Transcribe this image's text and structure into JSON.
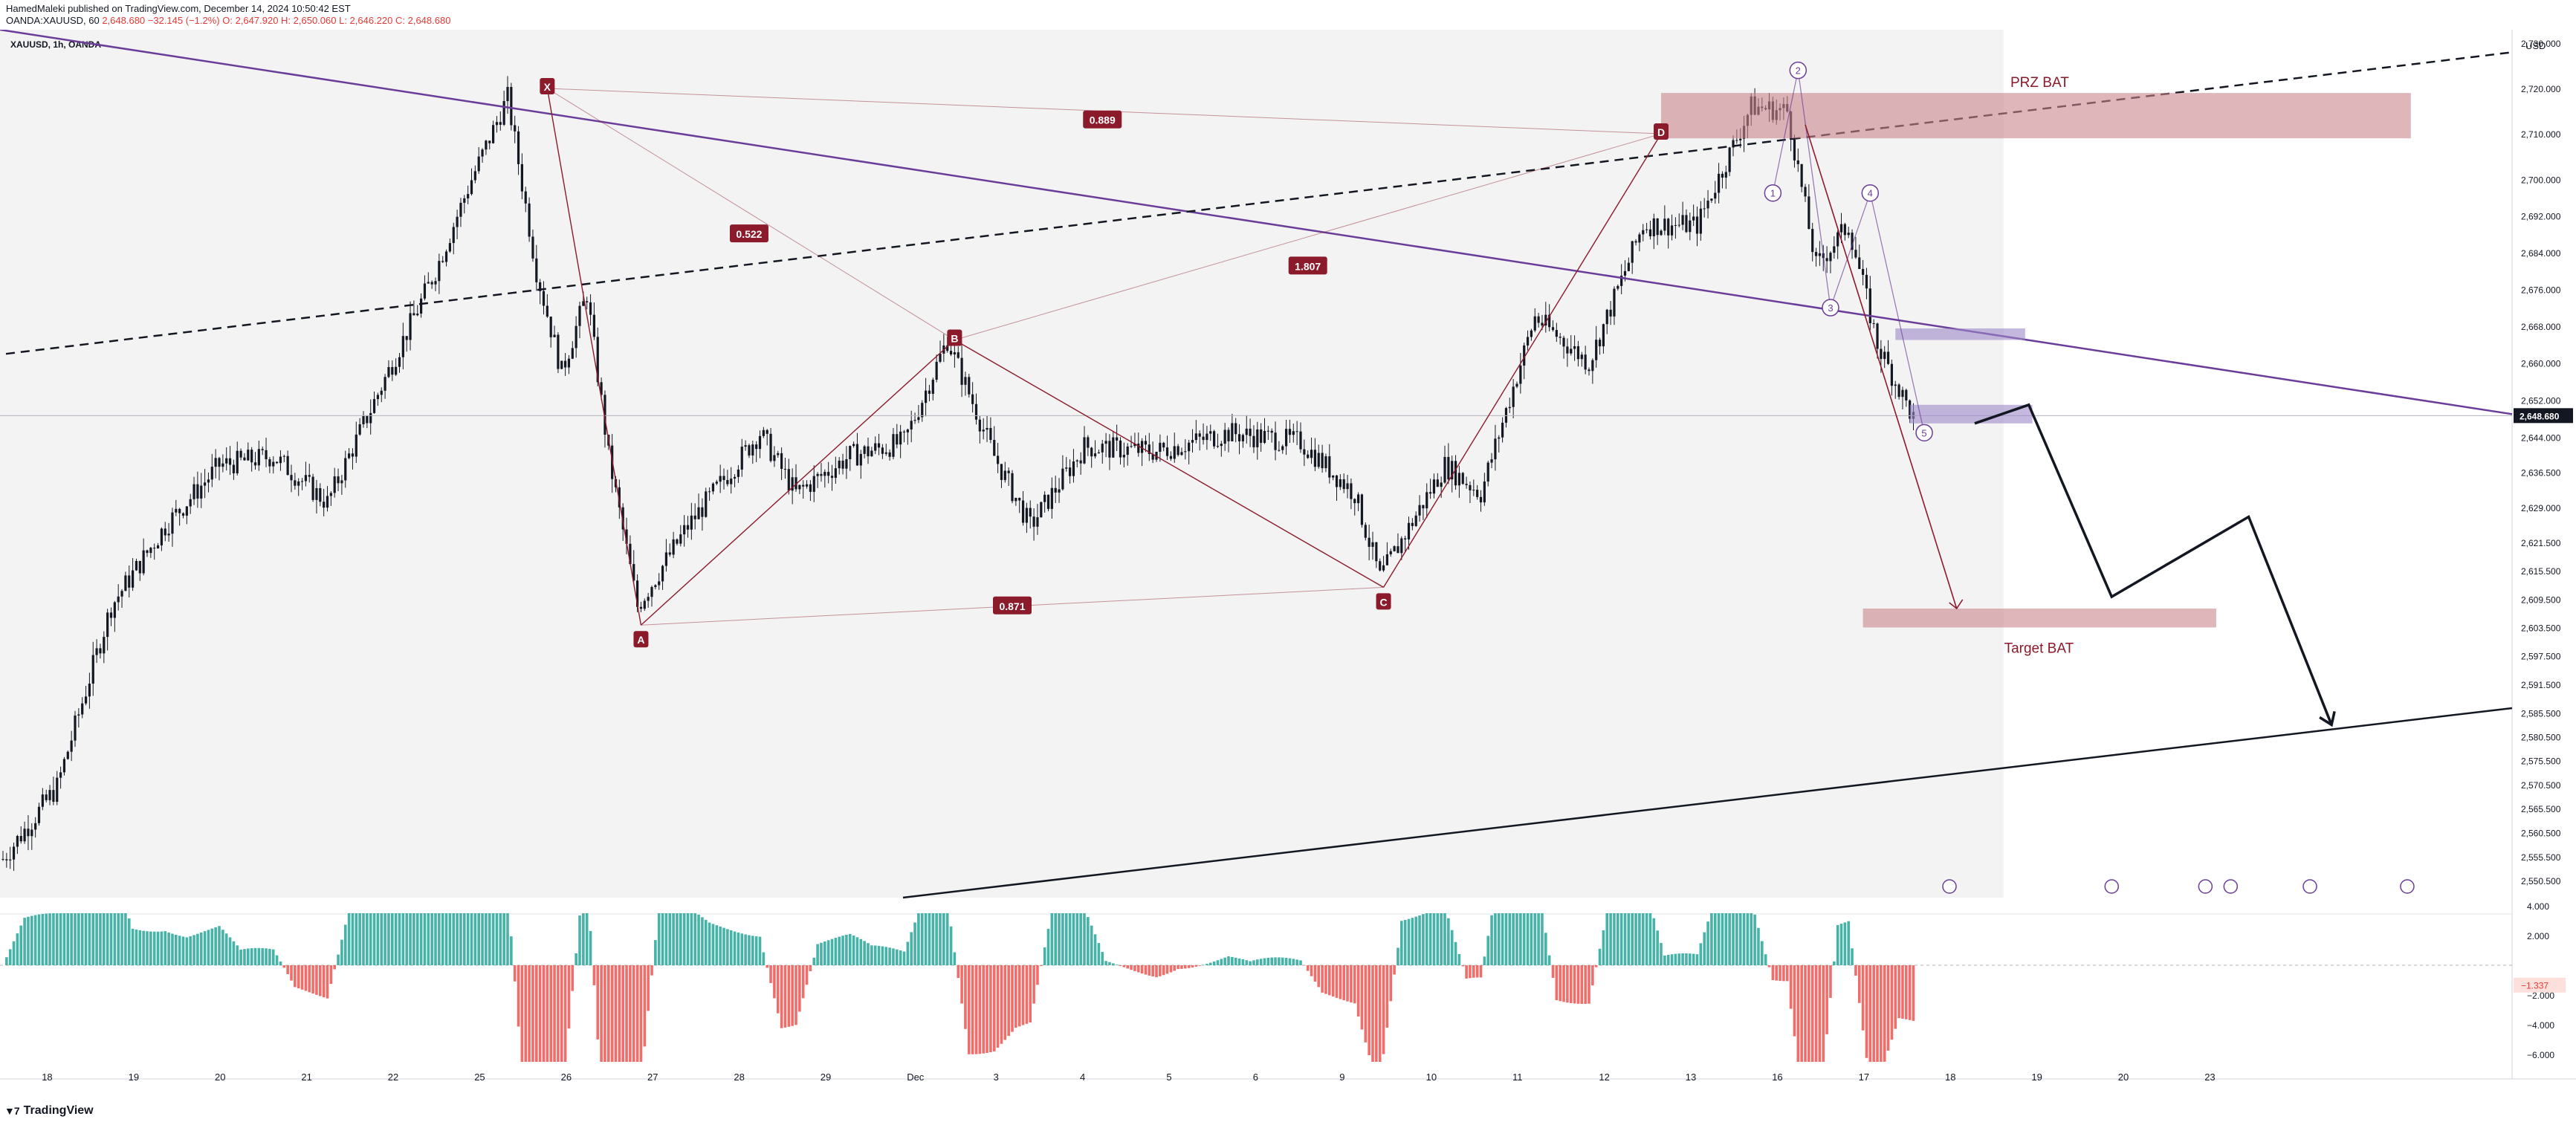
{
  "header": {
    "publisher": "HamedMaleki published on TradingView.com, December 14, 2024 10:50:42 EST",
    "symbol": "OANDA:XAUUSD, 60",
    "change": "2,648.680 −32.145 (−1.2%)",
    "ohlc": "O: 2,647.920 H: 2,650.060 L: 2,646.220 C: 2,648.680"
  },
  "chart_label": "XAUUSD, 1h, OANDA",
  "axis_currency": "USD",
  "last_price_label": "2,648.680",
  "footer_brand": "TradingView",
  "colors": {
    "up": "#26a69a",
    "down": "#ef5350",
    "pattern": "#8b1a2b",
    "purple_line": "#6a3d9a",
    "zone_red": "#c9868c",
    "zone_purple": "#9c88c9",
    "plot_bg": "#f3f3f3"
  },
  "chart_data": {
    "type": "candlestick",
    "y_ticks": [
      "2,730.000",
      "2,720.000",
      "2,710.000",
      "2,700.000",
      "2,692.000",
      "2,684.000",
      "2,676.000",
      "2,668.000",
      "2,660.000",
      "2,652.000",
      "2,644.000",
      "2,636.500",
      "2,629.000",
      "2,621.500",
      "2,615.500",
      "2,609.500",
      "2,603.500",
      "2,597.500",
      "2,591.500",
      "2,585.500",
      "2,580.500",
      "2,575.500",
      "2,570.500",
      "2,565.500",
      "2,560.500",
      "2,555.500",
      "2,550.500"
    ],
    "y_tick_values": [
      2730,
      2720,
      2710,
      2700,
      2692,
      2684,
      2676,
      2668,
      2660,
      2652,
      2644,
      2636.5,
      2629,
      2621.5,
      2615.5,
      2609.5,
      2603.5,
      2597.5,
      2591.5,
      2585.5,
      2580.5,
      2575.5,
      2570.5,
      2565.5,
      2560.5,
      2555.5,
      2550.5
    ],
    "x_ticks": [
      "18",
      "19",
      "20",
      "21",
      "22",
      "25",
      "26",
      "27",
      "28",
      "29",
      "Dec",
      "3",
      "4",
      "5",
      "6",
      "9",
      "10",
      "11",
      "12",
      "13",
      "16",
      "17",
      "18",
      "19",
      "20",
      "23"
    ],
    "price_path": [
      {
        "i": 0,
        "v": 2555
      },
      {
        "i": 15,
        "v": 2570
      },
      {
        "i": 30,
        "v": 2608
      },
      {
        "i": 45,
        "v": 2625
      },
      {
        "i": 60,
        "v": 2638
      },
      {
        "i": 75,
        "v": 2640
      },
      {
        "i": 90,
        "v": 2630
      },
      {
        "i": 105,
        "v": 2655
      },
      {
        "i": 120,
        "v": 2680
      },
      {
        "i": 130,
        "v": 2700
      },
      {
        "i": 140,
        "v": 2718
      },
      {
        "i": 148,
        "v": 2680
      },
      {
        "i": 155,
        "v": 2658
      },
      {
        "i": 162,
        "v": 2675
      },
      {
        "i": 168,
        "v": 2640
      },
      {
        "i": 176,
        "v": 2608
      },
      {
        "i": 190,
        "v": 2625
      },
      {
        "i": 210,
        "v": 2645
      },
      {
        "i": 220,
        "v": 2632
      },
      {
        "i": 235,
        "v": 2640
      },
      {
        "i": 250,
        "v": 2643
      },
      {
        "i": 262,
        "v": 2665
      },
      {
        "i": 275,
        "v": 2640
      },
      {
        "i": 285,
        "v": 2625
      },
      {
        "i": 300,
        "v": 2642
      },
      {
        "i": 320,
        "v": 2641
      },
      {
        "i": 340,
        "v": 2645
      },
      {
        "i": 360,
        "v": 2643
      },
      {
        "i": 375,
        "v": 2632
      },
      {
        "i": 382,
        "v": 2614
      },
      {
        "i": 400,
        "v": 2638
      },
      {
        "i": 410,
        "v": 2632
      },
      {
        "i": 425,
        "v": 2670
      },
      {
        "i": 440,
        "v": 2660
      },
      {
        "i": 455,
        "v": 2690
      },
      {
        "i": 470,
        "v": 2690
      },
      {
        "i": 485,
        "v": 2716
      },
      {
        "i": 495,
        "v": 2715
      },
      {
        "i": 503,
        "v": 2681
      },
      {
        "i": 512,
        "v": 2690
      },
      {
        "i": 520,
        "v": 2664
      },
      {
        "i": 530,
        "v": 2648
      }
    ],
    "pattern_points": [
      {
        "label": "X",
        "i": 151,
        "v": 2720
      },
      {
        "label": "A",
        "i": 177,
        "v": 2604
      },
      {
        "label": "B",
        "i": 264,
        "v": 2665
      },
      {
        "label": "C",
        "i": 383,
        "v": 2612
      },
      {
        "label": "D",
        "i": 460,
        "v": 2710
      }
    ],
    "ratios": [
      {
        "label": "0.889",
        "i": 305,
        "v": 2713
      },
      {
        "label": "0.522",
        "i": 207,
        "v": 2688
      },
      {
        "label": "1.807",
        "i": 362,
        "v": 2681
      },
      {
        "label": "0.871",
        "i": 280,
        "v": 2608
      }
    ],
    "wave_labels": [
      {
        "label": "1",
        "i": 491,
        "v": 2697
      },
      {
        "label": "2",
        "i": 498,
        "v": 2724
      },
      {
        "label": "3",
        "i": 507,
        "v": 2672
      },
      {
        "label": "4",
        "i": 518,
        "v": 2697
      },
      {
        "label": "5",
        "i": 533,
        "v": 2645
      }
    ],
    "zones": [
      {
        "label": "PRZ BAT",
        "i1": 460,
        "i2": 668,
        "v1": 2709,
        "v2": 2719,
        "color": "red"
      },
      {
        "label": "Target BAT",
        "i1": 516,
        "i2": 614,
        "v1": 2603.5,
        "v2": 2607.5,
        "color": "red"
      },
      {
        "label": "",
        "i1": 525,
        "i2": 561,
        "v1": 2665,
        "v2": 2667.5,
        "color": "purple"
      },
      {
        "label": "",
        "i1": 529,
        "i2": 563,
        "v1": 2647,
        "v2": 2651,
        "color": "purple"
      }
    ],
    "projection": [
      {
        "i": 547,
        "v": 2647
      },
      {
        "i": 562,
        "v": 2651
      },
      {
        "i": 585,
        "v": 2610
      },
      {
        "i": 623,
        "v": 2627
      },
      {
        "i": 646,
        "v": 2583
      }
    ],
    "oscillator": {
      "y_ticks": [
        "4.000",
        "2.000",
        "−2.000",
        "−4.000",
        "−6.000"
      ],
      "y_tick_values": [
        4,
        2,
        -2,
        -4,
        -6
      ],
      "last_label": "−1.337",
      "last_value": -1.337
    },
    "event_markers": 6
  }
}
